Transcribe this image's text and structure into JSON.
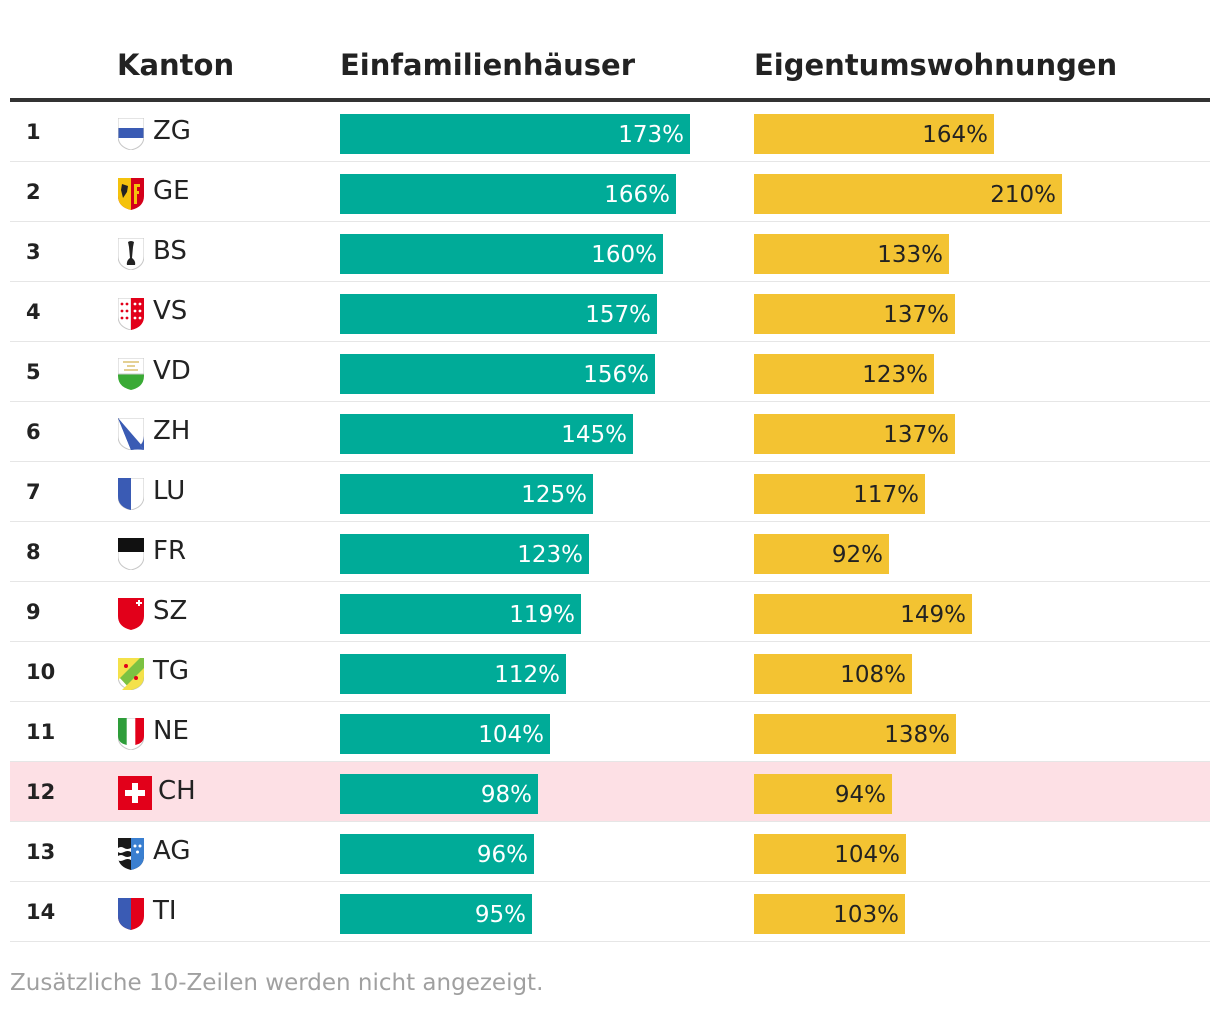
{
  "header": {
    "kanton": "Kanton",
    "einfamilienhaeuser": "Einfamilienhäuser",
    "eigentumswohnungen": "Eigentumswohnungen"
  },
  "colors": {
    "efh_bar": "#00ab98",
    "etw_bar": "#f3c332",
    "highlight_row": "#fde0e5"
  },
  "chart_data": {
    "type": "table",
    "title": "",
    "columns": [
      "Kanton",
      "Einfamilienhäuser",
      "Eigentumswohnungen"
    ],
    "rows": [
      {
        "rank": "1",
        "canton": "ZG",
        "flag": "zg-flag-icon",
        "efh": 173,
        "etw": 164,
        "efh_label": "173%",
        "etw_label": "164%"
      },
      {
        "rank": "2",
        "canton": "GE",
        "flag": "ge-flag-icon",
        "efh": 166,
        "etw": 210,
        "efh_label": "166%",
        "etw_label": "210%"
      },
      {
        "rank": "3",
        "canton": "BS",
        "flag": "bs-flag-icon",
        "efh": 160,
        "etw": 133,
        "efh_label": "160%",
        "etw_label": "133%"
      },
      {
        "rank": "4",
        "canton": "VS",
        "flag": "vs-flag-icon",
        "efh": 157,
        "etw": 137,
        "efh_label": "157%",
        "etw_label": "137%"
      },
      {
        "rank": "5",
        "canton": "VD",
        "flag": "vd-flag-icon",
        "efh": 156,
        "etw": 123,
        "efh_label": "156%",
        "etw_label": "123%"
      },
      {
        "rank": "6",
        "canton": "ZH",
        "flag": "zh-flag-icon",
        "efh": 145,
        "etw": 137,
        "efh_label": "145%",
        "etw_label": "137%"
      },
      {
        "rank": "7",
        "canton": "LU",
        "flag": "lu-flag-icon",
        "efh": 125,
        "etw": 117,
        "efh_label": "125%",
        "etw_label": "117%"
      },
      {
        "rank": "8",
        "canton": "FR",
        "flag": "fr-flag-icon",
        "efh": 123,
        "etw": 92,
        "efh_label": "123%",
        "etw_label": "92%"
      },
      {
        "rank": "9",
        "canton": "SZ",
        "flag": "sz-flag-icon",
        "efh": 119,
        "etw": 149,
        "efh_label": "119%",
        "etw_label": "149%"
      },
      {
        "rank": "10",
        "canton": "TG",
        "flag": "tg-flag-icon",
        "efh": 112,
        "etw": 108,
        "efh_label": "112%",
        "etw_label": "108%"
      },
      {
        "rank": "11",
        "canton": "NE",
        "flag": "ne-flag-icon",
        "efh": 104,
        "etw": 138,
        "efh_label": "104%",
        "etw_label": "138%"
      },
      {
        "rank": "12",
        "canton": "CH",
        "flag": "ch-flag-icon",
        "efh": 98,
        "etw": 94,
        "efh_label": "98%",
        "etw_label": "94%",
        "highlight": true
      },
      {
        "rank": "13",
        "canton": "AG",
        "flag": "ag-flag-icon",
        "efh": 96,
        "etw": 104,
        "efh_label": "96%",
        "etw_label": "104%"
      },
      {
        "rank": "14",
        "canton": "TI",
        "flag": "ti-flag-icon",
        "efh": 95,
        "etw": 103,
        "efh_label": "95%",
        "etw_label": "103%"
      }
    ]
  },
  "footer": {
    "note": "Zusätzliche 10-Zeilen werden nicht angezeigt."
  }
}
